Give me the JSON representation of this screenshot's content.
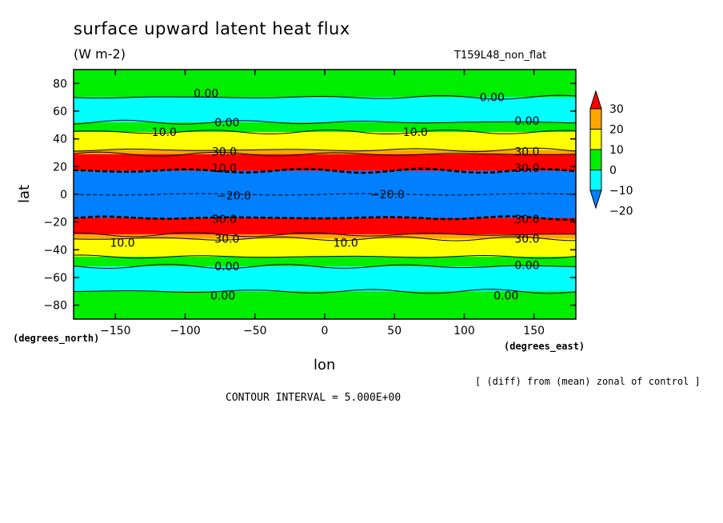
{
  "chart_data": {
    "type": "heatmap",
    "title": "surface upward latent heat flux",
    "units": "(W m-2)",
    "run_label": "T159L48_non_flat",
    "xlabel": "lon",
    "ylabel": "lat",
    "x_unit_label": "(degrees_east)",
    "y_unit_label": "(degrees_north)",
    "note": "[ (diff) from (mean) zonal of control ]",
    "contour_interval_text": "CONTOUR INTERVAL = 5.000E+00",
    "xlim": [
      -180,
      180
    ],
    "ylim": [
      -90,
      90
    ],
    "x_ticks": [
      -150,
      -100,
      -50,
      0,
      50,
      100,
      150
    ],
    "x_tick_labels": [
      "−150",
      "−100",
      "−50",
      "0",
      "50",
      "100",
      "150"
    ],
    "y_ticks": [
      80,
      60,
      40,
      20,
      0,
      -20,
      -40,
      -60,
      -80
    ],
    "y_tick_labels": [
      "80",
      "60",
      "40",
      "20",
      "0",
      "−20",
      "−40",
      "−60",
      "−80"
    ],
    "colorbar": {
      "levels": [
        30,
        20,
        10,
        0,
        -10,
        -20
      ],
      "level_labels": [
        "30",
        "20",
        "10",
        "0",
        "−10",
        "−20"
      ],
      "colors": [
        "#ff0000",
        "#ffa500",
        "#ffff00",
        "#00ee00",
        "#00ffff",
        "#0080ff"
      ]
    },
    "zonal_bands": [
      {
        "lat_from": 70,
        "lat_to": 90,
        "value": 5,
        "color": "#00ee00"
      },
      {
        "lat_from": 52,
        "lat_to": 70,
        "value": -5,
        "color": "#00ffff"
      },
      {
        "lat_from": 45,
        "lat_to": 52,
        "value": 5,
        "color": "#00ee00"
      },
      {
        "lat_from": 32,
        "lat_to": 45,
        "value": 15,
        "color": "#ffff00"
      },
      {
        "lat_from": 29,
        "lat_to": 32,
        "value": 25,
        "color": "#ffa500"
      },
      {
        "lat_from": 17,
        "lat_to": 29,
        "value": 35,
        "color": "#ff0000"
      },
      {
        "lat_from": -17,
        "lat_to": 17,
        "value": -25,
        "color": "#0080ff"
      },
      {
        "lat_from": -29,
        "lat_to": -17,
        "value": 35,
        "color": "#ff0000"
      },
      {
        "lat_from": -32,
        "lat_to": -29,
        "value": 25,
        "color": "#ffa500"
      },
      {
        "lat_from": -45,
        "lat_to": -32,
        "value": 15,
        "color": "#ffff00"
      },
      {
        "lat_from": -52,
        "lat_to": -45,
        "value": 5,
        "color": "#00ee00"
      },
      {
        "lat_from": -70,
        "lat_to": -52,
        "value": -5,
        "color": "#00ffff"
      },
      {
        "lat_from": -90,
        "lat_to": -70,
        "value": 5,
        "color": "#00ee00"
      }
    ],
    "contour_labels": [
      {
        "text": "0.00",
        "lon": -85,
        "lat": 73
      },
      {
        "text": "0.00",
        "lon": 120,
        "lat": 70
      },
      {
        "text": "0.00",
        "lon": -70,
        "lat": 52
      },
      {
        "text": "0.00",
        "lon": 145,
        "lat": 53
      },
      {
        "text": "10.0",
        "lon": -115,
        "lat": 45
      },
      {
        "text": "10.0",
        "lon": 65,
        "lat": 45
      },
      {
        "text": "30.0",
        "lon": -72,
        "lat": 31
      },
      {
        "text": "30.0",
        "lon": 145,
        "lat": 31
      },
      {
        "text": "10.0",
        "lon": -72,
        "lat": 19
      },
      {
        "text": "30.0",
        "lon": 145,
        "lat": 19
      },
      {
        "text": "−20.0",
        "lon": -65,
        "lat": -1
      },
      {
        "text": "−20.0",
        "lon": 45,
        "lat": 0
      },
      {
        "text": "30.0",
        "lon": -72,
        "lat": -18
      },
      {
        "text": "30.0",
        "lon": 145,
        "lat": -18
      },
      {
        "text": "30.0",
        "lon": -70,
        "lat": -32
      },
      {
        "text": "30.0",
        "lon": 145,
        "lat": -32
      },
      {
        "text": "10.0",
        "lon": -145,
        "lat": -35
      },
      {
        "text": "10.0",
        "lon": 15,
        "lat": -35
      },
      {
        "text": "0.00",
        "lon": -70,
        "lat": -52
      },
      {
        "text": "0.00",
        "lon": 145,
        "lat": -51
      },
      {
        "text": "0.00",
        "lon": -73,
        "lat": -73
      },
      {
        "text": "0.00",
        "lon": 130,
        "lat": -73
      }
    ]
  }
}
